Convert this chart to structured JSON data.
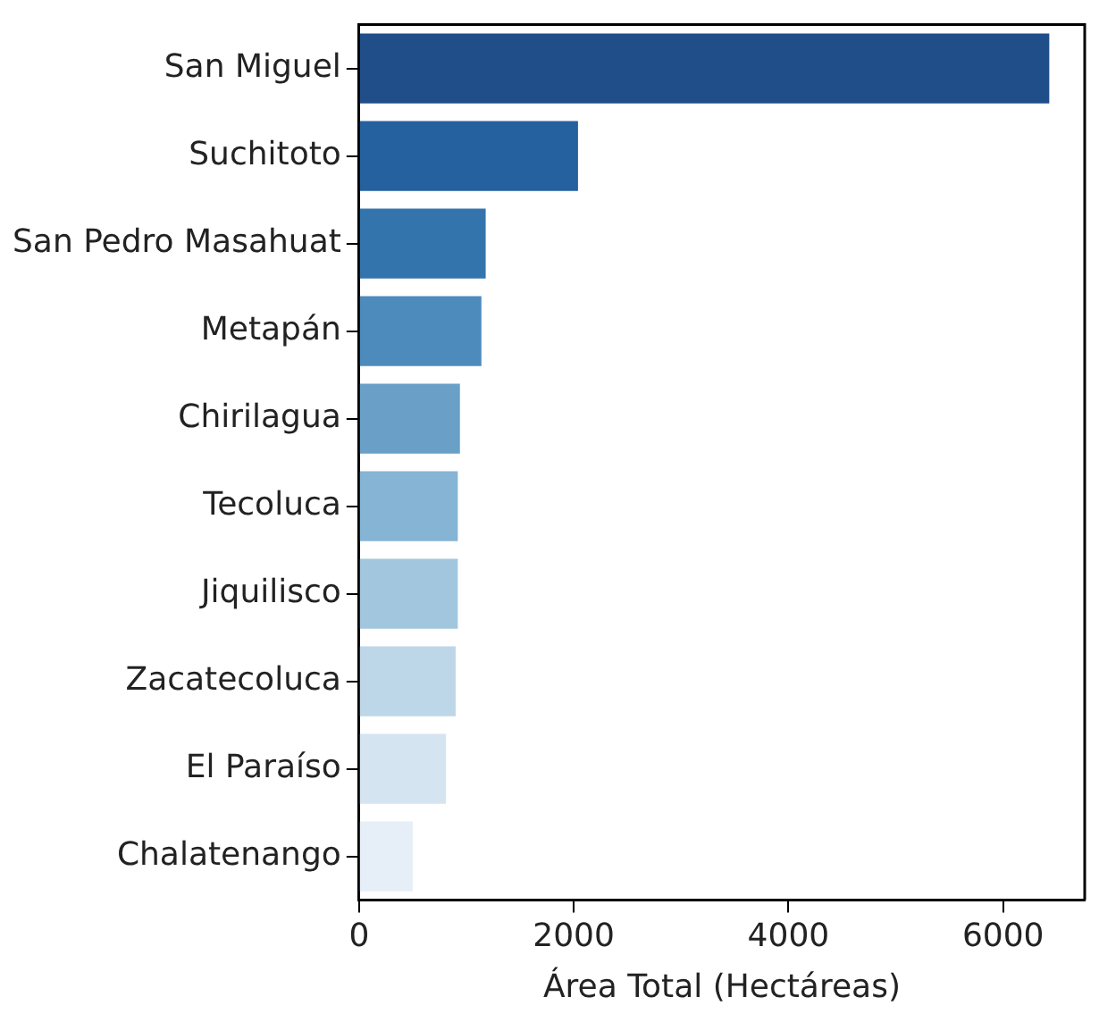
{
  "chart_data": {
    "type": "bar",
    "orientation": "horizontal",
    "xlabel": "Área Total (Hectáreas)",
    "categories": [
      "San Miguel",
      "Suchitoto",
      "San Pedro Masahuat",
      "Metapán",
      "Chirilagua",
      "Tecoluca",
      "Jiquilisco",
      "Zacatecoluca",
      "El Paraíso",
      "Chalatenango"
    ],
    "values": [
      6430,
      2040,
      1180,
      1140,
      940,
      920,
      920,
      900,
      810,
      500
    ],
    "colors": [
      "#1f4e89",
      "#25619f",
      "#3474ad",
      "#4d8bbd",
      "#6aa0c8",
      "#86b4d4",
      "#a2c6de",
      "#bdd6e8",
      "#d5e4f1",
      "#e6eff8"
    ],
    "xlim": [
      0,
      6760
    ],
    "xticks": [
      0,
      2000,
      4000,
      6000
    ],
    "grid": false,
    "legend": false
  }
}
